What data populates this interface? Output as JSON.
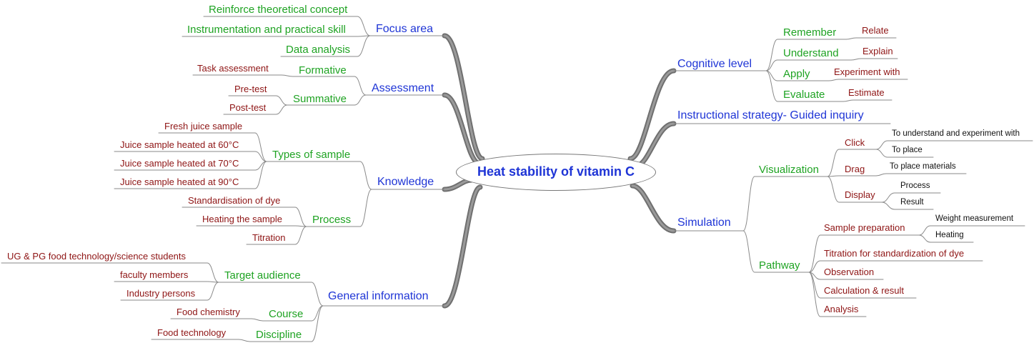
{
  "center": {
    "title": "Heat stability of vitamin C"
  },
  "left": {
    "focus_area": {
      "label": "Focus area",
      "items": [
        "Reinforce theoretical concept",
        "Instrumentation and practical skill",
        "Data analysis"
      ]
    },
    "assessment": {
      "label": "Assessment",
      "formative": {
        "label": "Formative",
        "items": [
          "Task assessment"
        ]
      },
      "summative": {
        "label": "Summative",
        "items": [
          "Pre-test",
          "Post-test"
        ]
      }
    },
    "knowledge": {
      "label": "Knowledge",
      "types_of_sample": {
        "label": "Types of sample",
        "items": [
          "Fresh juice sample",
          "Juice sample heated at 60°C",
          "Juice sample heated at 70°C",
          "Juice sample heated at 90°C"
        ]
      },
      "process": {
        "label": "Process",
        "items": [
          "Standardisation of dye",
          "Heating the sample",
          "Titration"
        ]
      }
    },
    "general_information": {
      "label": "General information",
      "target_audience": {
        "label": "Target audience",
        "items": [
          "UG & PG food technology/science students",
          "faculty members",
          "Industry persons"
        ]
      },
      "course": {
        "label": "Course",
        "items": [
          "Food chemistry"
        ]
      },
      "discipline": {
        "label": "Discipline",
        "items": [
          "Food technology"
        ]
      }
    }
  },
  "right": {
    "cognitive_level": {
      "label": "Cognitive level",
      "items": [
        {
          "label": "Remember",
          "child": "Relate"
        },
        {
          "label": "Understand",
          "child": "Explain"
        },
        {
          "label": "Apply",
          "child": "Experiment with"
        },
        {
          "label": "Evaluate",
          "child": "Estimate"
        }
      ]
    },
    "instructional_strategy": {
      "label": "Instructional strategy- Guided inquiry"
    },
    "simulation": {
      "label": "Simulation",
      "visualization": {
        "label": "Visualization",
        "click": {
          "label": "Click",
          "items": [
            "To understand and experiment with",
            "To place"
          ]
        },
        "drag": {
          "label": "Drag",
          "items": [
            "To place materials"
          ]
        },
        "display": {
          "label": "Display",
          "items": [
            "Process",
            "Result"
          ]
        }
      },
      "pathway": {
        "label": "Pathway",
        "sample_preparation": {
          "label": "Sample preparation",
          "items": [
            "Weight measurement",
            "Heating"
          ]
        },
        "items": [
          "Titration for standardization of dye",
          "Observation",
          "Calculation & result",
          "Analysis"
        ]
      }
    }
  },
  "colors": {
    "level1": "#1f35d6",
    "level2": "#1fa323",
    "level3": "#8e1414",
    "level4": "#111111",
    "connector": "#8a8a8a",
    "trunk": "#6f6f6f"
  }
}
